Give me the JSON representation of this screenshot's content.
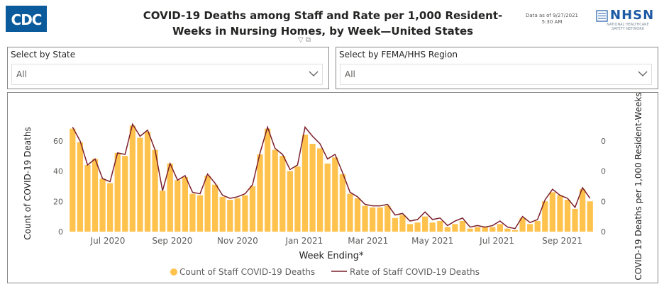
{
  "header": {
    "logo_text": "CDC",
    "title_line1": "COVID-19 Deaths among Staff and Rate per 1,000 Resident-",
    "title_line2": "Weeks in Nursing Homes, by Week—United States",
    "asof_line1": "Data as of 9/27/2021",
    "asof_line2": "5:30 AM",
    "nhsn_word": "NHSN",
    "nhsn_sub1": "NATIONAL HEALTHCARE",
    "nhsn_sub2": "SAFETY NETWORK",
    "filter_icon": "funnel-icon",
    "focus_icon": "expand-icon"
  },
  "slicers": {
    "state": {
      "label": "Select by State",
      "value": "All"
    },
    "region": {
      "label": "Select by FEMA/HHS Region",
      "value": "All"
    }
  },
  "colors": {
    "bar": "#FFC34D",
    "line": "#7A1F2B",
    "logo": "#0a5a9c",
    "nhsn": "#1f5aa6"
  },
  "chart_data": {
    "type": "bar",
    "xlabel": "Week Ending*",
    "ylabel": "Count of COVID-19 Deaths",
    "y2label": "COVID-19 Deaths per 1,000 Resident-Weeks",
    "ylim": [
      0,
      80
    ],
    "yticks": [
      0,
      20,
      40,
      60
    ],
    "y2_tick_labels": [
      "0",
      "0",
      "0",
      "0"
    ],
    "x_tick_labels": [
      "Jul 2020",
      "Sep 2020",
      "Nov 2020",
      "Jan 2021",
      "Mar 2021",
      "May 2021",
      "Jul 2021",
      "Sep 2021"
    ],
    "x_tick_index": [
      4.7,
      13.3,
      22.0,
      30.9,
      39.4,
      48.0,
      56.6,
      65.3
    ],
    "legend": [
      "Count of Staff COVID-19 Deaths",
      "Rate of Staff COVID-19 Deaths"
    ],
    "legend_position": "bottom",
    "values": [
      68,
      59,
      44,
      48,
      35,
      32,
      52,
      50,
      70,
      62,
      66,
      54,
      27,
      45,
      34,
      36,
      25,
      24,
      37,
      31,
      23,
      21,
      22,
      24,
      30,
      51,
      68,
      54,
      50,
      40,
      43,
      64,
      58,
      55,
      45,
      49,
      38,
      25,
      22,
      17,
      16,
      16,
      17,
      9,
      11,
      5,
      6,
      10,
      6,
      7,
      3,
      5,
      7,
      2,
      3,
      3,
      3,
      5,
      2,
      1,
      9,
      5,
      7,
      20,
      26,
      24,
      21,
      15,
      28,
      20
    ],
    "rate": [
      69,
      60,
      44,
      48,
      35,
      33,
      52,
      51,
      71,
      63,
      67,
      54,
      27,
      45,
      34,
      37,
      26,
      25,
      38,
      32,
      24,
      22,
      23,
      25,
      31,
      52,
      69,
      55,
      51,
      41,
      44,
      69,
      63,
      58,
      48,
      51,
      39,
      26,
      23,
      18,
      17,
      17,
      18,
      11,
      12,
      7,
      8,
      13,
      8,
      9,
      4,
      7,
      9,
      3,
      4,
      3,
      4,
      7,
      3,
      2,
      10,
      6,
      8,
      21,
      28,
      24,
      22,
      16,
      29,
      22
    ]
  }
}
